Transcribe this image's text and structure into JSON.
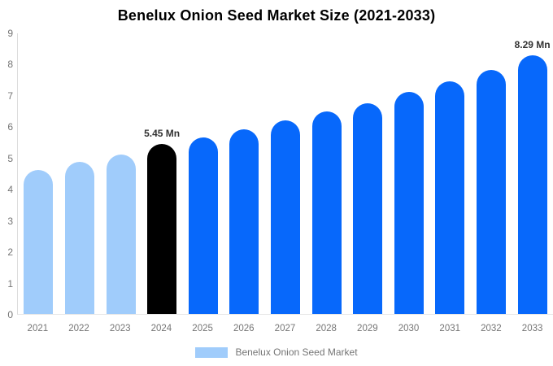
{
  "chart_data": {
    "type": "bar",
    "title": "Benelux Onion Seed Market Size (2021-2033)",
    "categories": [
      "2021",
      "2022",
      "2023",
      "2024",
      "2025",
      "2026",
      "2027",
      "2028",
      "2029",
      "2030",
      "2031",
      "2032",
      "2033"
    ],
    "series": [
      {
        "name": "Benelux Onion Seed Market",
        "values": [
          4.63,
          4.89,
          5.11,
          5.45,
          5.66,
          5.92,
          6.2,
          6.5,
          6.76,
          7.11,
          7.45,
          7.83,
          8.29
        ]
      }
    ],
    "point_colors": [
      "#A0CCFB",
      "#A0CCFB",
      "#A0CCFB",
      "#000000",
      "#0768FB",
      "#0768FB",
      "#0768FB",
      "#0768FB",
      "#0768FB",
      "#0768FB",
      "#0768FB",
      "#0768FB",
      "#0768FB"
    ],
    "annotations": [
      {
        "category": "2024",
        "text": "5.45 Mn"
      },
      {
        "category": "2033",
        "text": "8.29 Mn"
      }
    ],
    "xlabel": "",
    "ylabel": "",
    "ylim": [
      0,
      9
    ],
    "yticks": [
      0,
      1,
      2,
      3,
      4,
      5,
      6,
      7,
      8,
      9
    ],
    "grid": false,
    "legend_position": "bottom"
  },
  "legend": {
    "label": "Benelux Onion Seed Market",
    "swatch_color": "#A0CCFB"
  },
  "colors": {
    "light_blue": "#A0CCFB",
    "blue": "#0768FB",
    "black": "#000000",
    "axis_text": "#757575",
    "annotation_text": "#333333",
    "axis_line": "#DCDCDC"
  }
}
